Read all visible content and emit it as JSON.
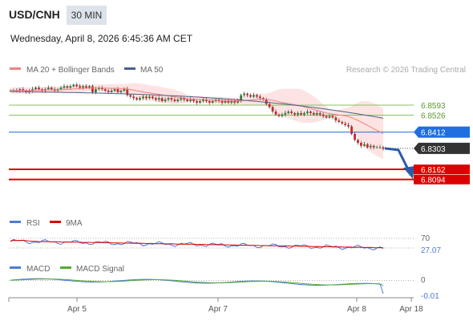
{
  "header": {
    "symbol": "USD/CNH",
    "timeframe": "30 MIN",
    "datetime": "Wednesday, April 8, 2026 6:45:36 AM CET",
    "copyright": "Research © 2026 Trading Central"
  },
  "colors": {
    "ma20": "#f08080",
    "bollinger_fill": "#fde3e3",
    "ma50": "#4a5f8a",
    "support": "#dd0000",
    "resistance": "#88c060",
    "current": "#333333",
    "pivot": "#1f6fe0",
    "rsi": "#4b7bd4",
    "rsi_ma": "#dd0000",
    "macd": "#4b7bd4",
    "macd_signal": "#55aa33"
  },
  "chart_data": [
    {
      "type": "line",
      "panel": "price",
      "legend": [
        "MA 20 + Bollinger Bands",
        "MA 50"
      ],
      "y_range": [
        6.792,
        6.876
      ],
      "x_ticks": [
        "Apr 5",
        "Apr 7",
        "Apr 8",
        "Apr 18"
      ],
      "levels": [
        {
          "name": "resistance-2",
          "label": "6.8593",
          "value": 6.8593,
          "kind": "resistance"
        },
        {
          "name": "resistance-1",
          "label": "6.8526",
          "value": 6.8526,
          "kind": "resistance"
        },
        {
          "name": "pivot",
          "label": "6.8412",
          "value": 6.8412,
          "kind": "pivot"
        },
        {
          "name": "current",
          "label": "6.8303",
          "value": 6.8303,
          "kind": "current"
        },
        {
          "name": "support-1",
          "label": "6.8162",
          "value": 6.8162,
          "kind": "support"
        },
        {
          "name": "support-2",
          "label": "6.8094",
          "value": 6.8094,
          "kind": "support"
        }
      ],
      "close": [
        6.869,
        6.869,
        6.869,
        6.87,
        6.869,
        6.868,
        6.869,
        6.87,
        6.871,
        6.87,
        6.869,
        6.87,
        6.871,
        6.87,
        6.869,
        6.87,
        6.871,
        6.872,
        6.871,
        6.872,
        6.873,
        6.872,
        6.871,
        6.872,
        6.871,
        6.872,
        6.868,
        6.87,
        6.871,
        6.87,
        6.869,
        6.868,
        6.869,
        6.87,
        6.868,
        6.869,
        6.87,
        6.866,
        6.865,
        6.864,
        6.863,
        6.864,
        6.865,
        6.864,
        6.865,
        6.864,
        6.863,
        6.864,
        6.862,
        6.863,
        6.864,
        6.863,
        6.862,
        6.863,
        6.864,
        6.863,
        6.862,
        6.863,
        6.862,
        6.861,
        6.862,
        6.863,
        6.862,
        6.861,
        6.862,
        6.863,
        6.862,
        6.861,
        6.862,
        6.861,
        6.862,
        6.861,
        6.862,
        6.866,
        6.867,
        6.866,
        6.865,
        6.866,
        6.865,
        6.864,
        6.863,
        6.86,
        6.858,
        6.855,
        6.853,
        6.852,
        6.853,
        6.854,
        6.855,
        6.854,
        6.853,
        6.854,
        6.853,
        6.854,
        6.855,
        6.854,
        6.853,
        6.854,
        6.853,
        6.852,
        6.851,
        6.852,
        6.851,
        6.849,
        6.848,
        6.847,
        6.846,
        6.845,
        6.84,
        6.836,
        6.834,
        6.832,
        6.833,
        6.831,
        6.832,
        6.831,
        6.831,
        6.831,
        6.83
      ],
      "ma20_end": 6.8385,
      "ma50_end": 6.8505
    },
    {
      "type": "line",
      "panel": "rsi",
      "legend": [
        "RSI",
        "9MA"
      ],
      "y_range": [
        0,
        100
      ],
      "levels": [
        {
          "label": "70",
          "value": 70
        }
      ],
      "last_value_label": "27.07",
      "last_value": 27.07
    },
    {
      "type": "line",
      "panel": "macd",
      "legend": [
        "MACD",
        "MACD Signal"
      ],
      "levels": [
        {
          "label": "0",
          "value": 0
        }
      ],
      "last_value_label": "-0.01",
      "last_value": -0.01
    }
  ]
}
